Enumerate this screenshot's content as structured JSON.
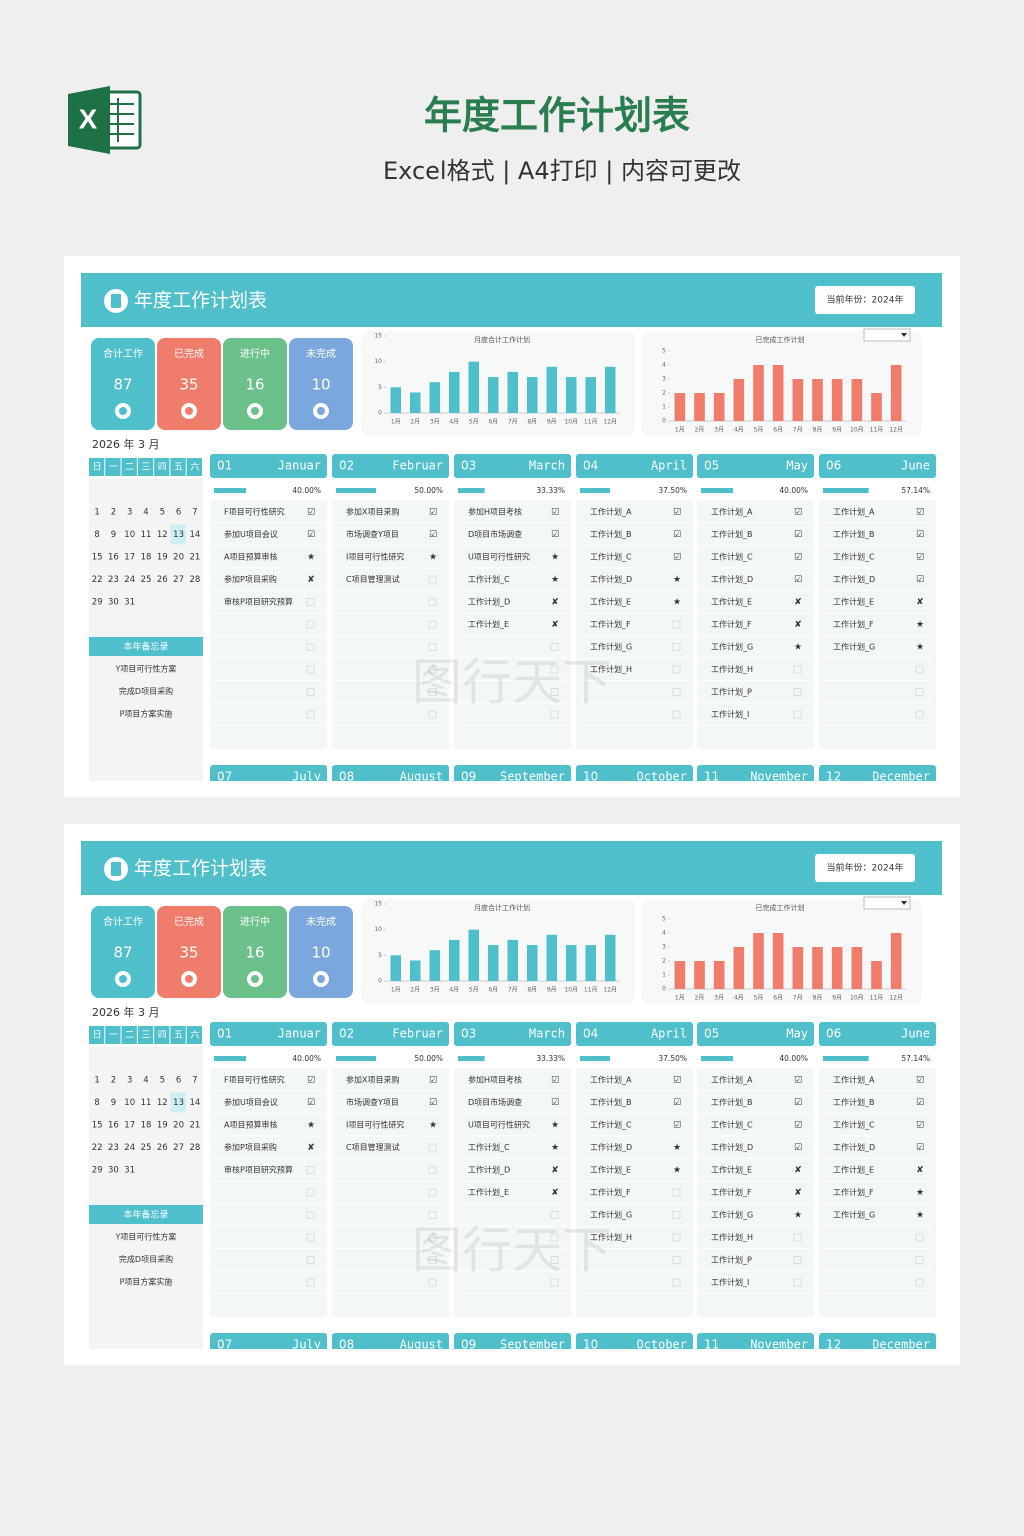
{
  "header": {
    "title": "年度工作计划表",
    "subtitle": "Excel格式 | A4打印 | 内容可更改"
  },
  "sheet": {
    "title": "年度工作计划表",
    "current_year": "当前年份：2024年",
    "watermark": "图行天下",
    "summary": [
      {
        "label": "合计工作",
        "value": 87,
        "color": "#4fbfcc"
      },
      {
        "label": "已完成",
        "value": 35,
        "color": "#f07c6c"
      },
      {
        "label": "进行中",
        "value": 16,
        "color": "#6cc08a"
      },
      {
        "label": "未完成",
        "value": 10,
        "color": "#7aa7dd"
      }
    ],
    "calendar": {
      "title": "2026 年 3 月",
      "weekdays": [
        "日",
        "一",
        "二",
        "三",
        "四",
        "五",
        "六"
      ],
      "days": [
        1,
        2,
        3,
        4,
        5,
        6,
        7,
        8,
        9,
        10,
        11,
        12,
        13,
        14,
        15,
        16,
        17,
        18,
        19,
        20,
        21,
        22,
        23,
        24,
        25,
        26,
        27,
        28,
        29,
        30,
        31
      ],
      "highlight_day": 13
    },
    "memo": {
      "title": "本年备忘录",
      "items": [
        "Y项目可行性方案",
        "完成D项目采购",
        "P项目方案实施"
      ]
    },
    "months": [
      {
        "number": "01",
        "name": "Januar",
        "progress": {
          "value": 40,
          "label": "40.00%"
        },
        "tasks": [
          {
            "text": "F项目可行性研究",
            "status": "☑"
          },
          {
            "text": "参加U项目会议",
            "status": "☑"
          },
          {
            "text": "A项目预算审核",
            "status": "★"
          },
          {
            "text": "参加P项目采购",
            "status": "✘"
          },
          {
            "text": "审核P项目研究预算",
            "status": null
          }
        ]
      },
      {
        "number": "02",
        "name": "Februar",
        "progress": {
          "value": 50,
          "label": "50.00%"
        },
        "tasks": [
          {
            "text": "参加X项目采购",
            "status": "☑"
          },
          {
            "text": "市场调查Y项目",
            "status": "☑"
          },
          {
            "text": "I项目可行性研究",
            "status": "★"
          },
          {
            "text": "C项目管理测试",
            "status": null
          }
        ]
      },
      {
        "number": "03",
        "name": "March",
        "progress": {
          "value": 33.33,
          "label": "33.33%"
        },
        "tasks": [
          {
            "text": "参加H项目考核",
            "status": "☑"
          },
          {
            "text": "D项目市场调查",
            "status": "☑"
          },
          {
            "text": "U项目可行性研究",
            "status": "★"
          },
          {
            "text": "工作计划_C",
            "status": "★"
          },
          {
            "text": "工作计划_D",
            "status": "✘"
          },
          {
            "text": "工作计划_E",
            "status": "✘"
          }
        ]
      },
      {
        "number": "04",
        "name": "April",
        "progress": {
          "value": 37.5,
          "label": "37.50%"
        },
        "tasks": [
          {
            "text": "工作计划_A",
            "status": "☑"
          },
          {
            "text": "工作计划_B",
            "status": "☑"
          },
          {
            "text": "工作计划_C",
            "status": "☑"
          },
          {
            "text": "工作计划_D",
            "status": "★"
          },
          {
            "text": "工作计划_E",
            "status": "★"
          },
          {
            "text": "工作计划_F",
            "status": null
          },
          {
            "text": "工作计划_G",
            "status": null
          },
          {
            "text": "工作计划_H",
            "status": null
          }
        ]
      },
      {
        "number": "05",
        "name": "May",
        "progress": {
          "value": 40,
          "label": "40.00%"
        },
        "tasks": [
          {
            "text": "工作计划_A",
            "status": "☑"
          },
          {
            "text": "工作计划_B",
            "status": "☑"
          },
          {
            "text": "工作计划_C",
            "status": "☑"
          },
          {
            "text": "工作计划_D",
            "status": "☑"
          },
          {
            "text": "工作计划_E",
            "status": "✘"
          },
          {
            "text": "工作计划_F",
            "status": "✘"
          },
          {
            "text": "工作计划_G",
            "status": "★"
          },
          {
            "text": "工作计划_H",
            "status": null
          },
          {
            "text": "工作计划_P",
            "status": null
          },
          {
            "text": "工作计划_I",
            "status": null
          }
        ]
      },
      {
        "number": "06",
        "name": "June",
        "progress": {
          "value": 57.14,
          "label": "57.14%"
        },
        "tasks": [
          {
            "text": "工作计划_A",
            "status": "☑"
          },
          {
            "text": "工作计划_B",
            "status": "☑"
          },
          {
            "text": "工作计划_C",
            "status": "☑"
          },
          {
            "text": "工作计划_D",
            "status": "☑"
          },
          {
            "text": "工作计划_E",
            "status": "✘"
          },
          {
            "text": "工作计划_F",
            "status": "★"
          },
          {
            "text": "工作计划_G",
            "status": "★"
          }
        ]
      },
      {
        "number": "07",
        "name": "July"
      },
      {
        "number": "08",
        "name": "August"
      },
      {
        "number": "09",
        "name": "September"
      },
      {
        "number": "10",
        "name": "October"
      },
      {
        "number": "11",
        "name": "November"
      },
      {
        "number": "12",
        "name": "December"
      }
    ]
  },
  "chart_data": [
    {
      "type": "bar",
      "title": "月度合计工作计划",
      "categories": [
        "1月",
        "2月",
        "3月",
        "4月",
        "5月",
        "6月",
        "7月",
        "8月",
        "9月",
        "10月",
        "11月",
        "12月"
      ],
      "values": [
        5,
        4,
        6,
        8,
        10,
        7,
        8,
        7,
        9,
        7,
        7,
        9
      ],
      "color": "#4fbfcc",
      "ylim": [
        0,
        15
      ],
      "yticks": [
        0,
        5,
        10,
        15
      ]
    },
    {
      "type": "bar",
      "title": "已完成工作计划",
      "categories": [
        "1月",
        "2月",
        "3月",
        "4月",
        "5月",
        "6月",
        "7月",
        "8月",
        "9月",
        "10月",
        "11月",
        "12月"
      ],
      "values": [
        2,
        2,
        2,
        3,
        4,
        4,
        3,
        3,
        3,
        3,
        2,
        4
      ],
      "color": "#f07c6c",
      "ylim": [
        0,
        5
      ],
      "yticks": [
        0,
        1,
        2,
        3,
        4,
        5
      ]
    }
  ]
}
